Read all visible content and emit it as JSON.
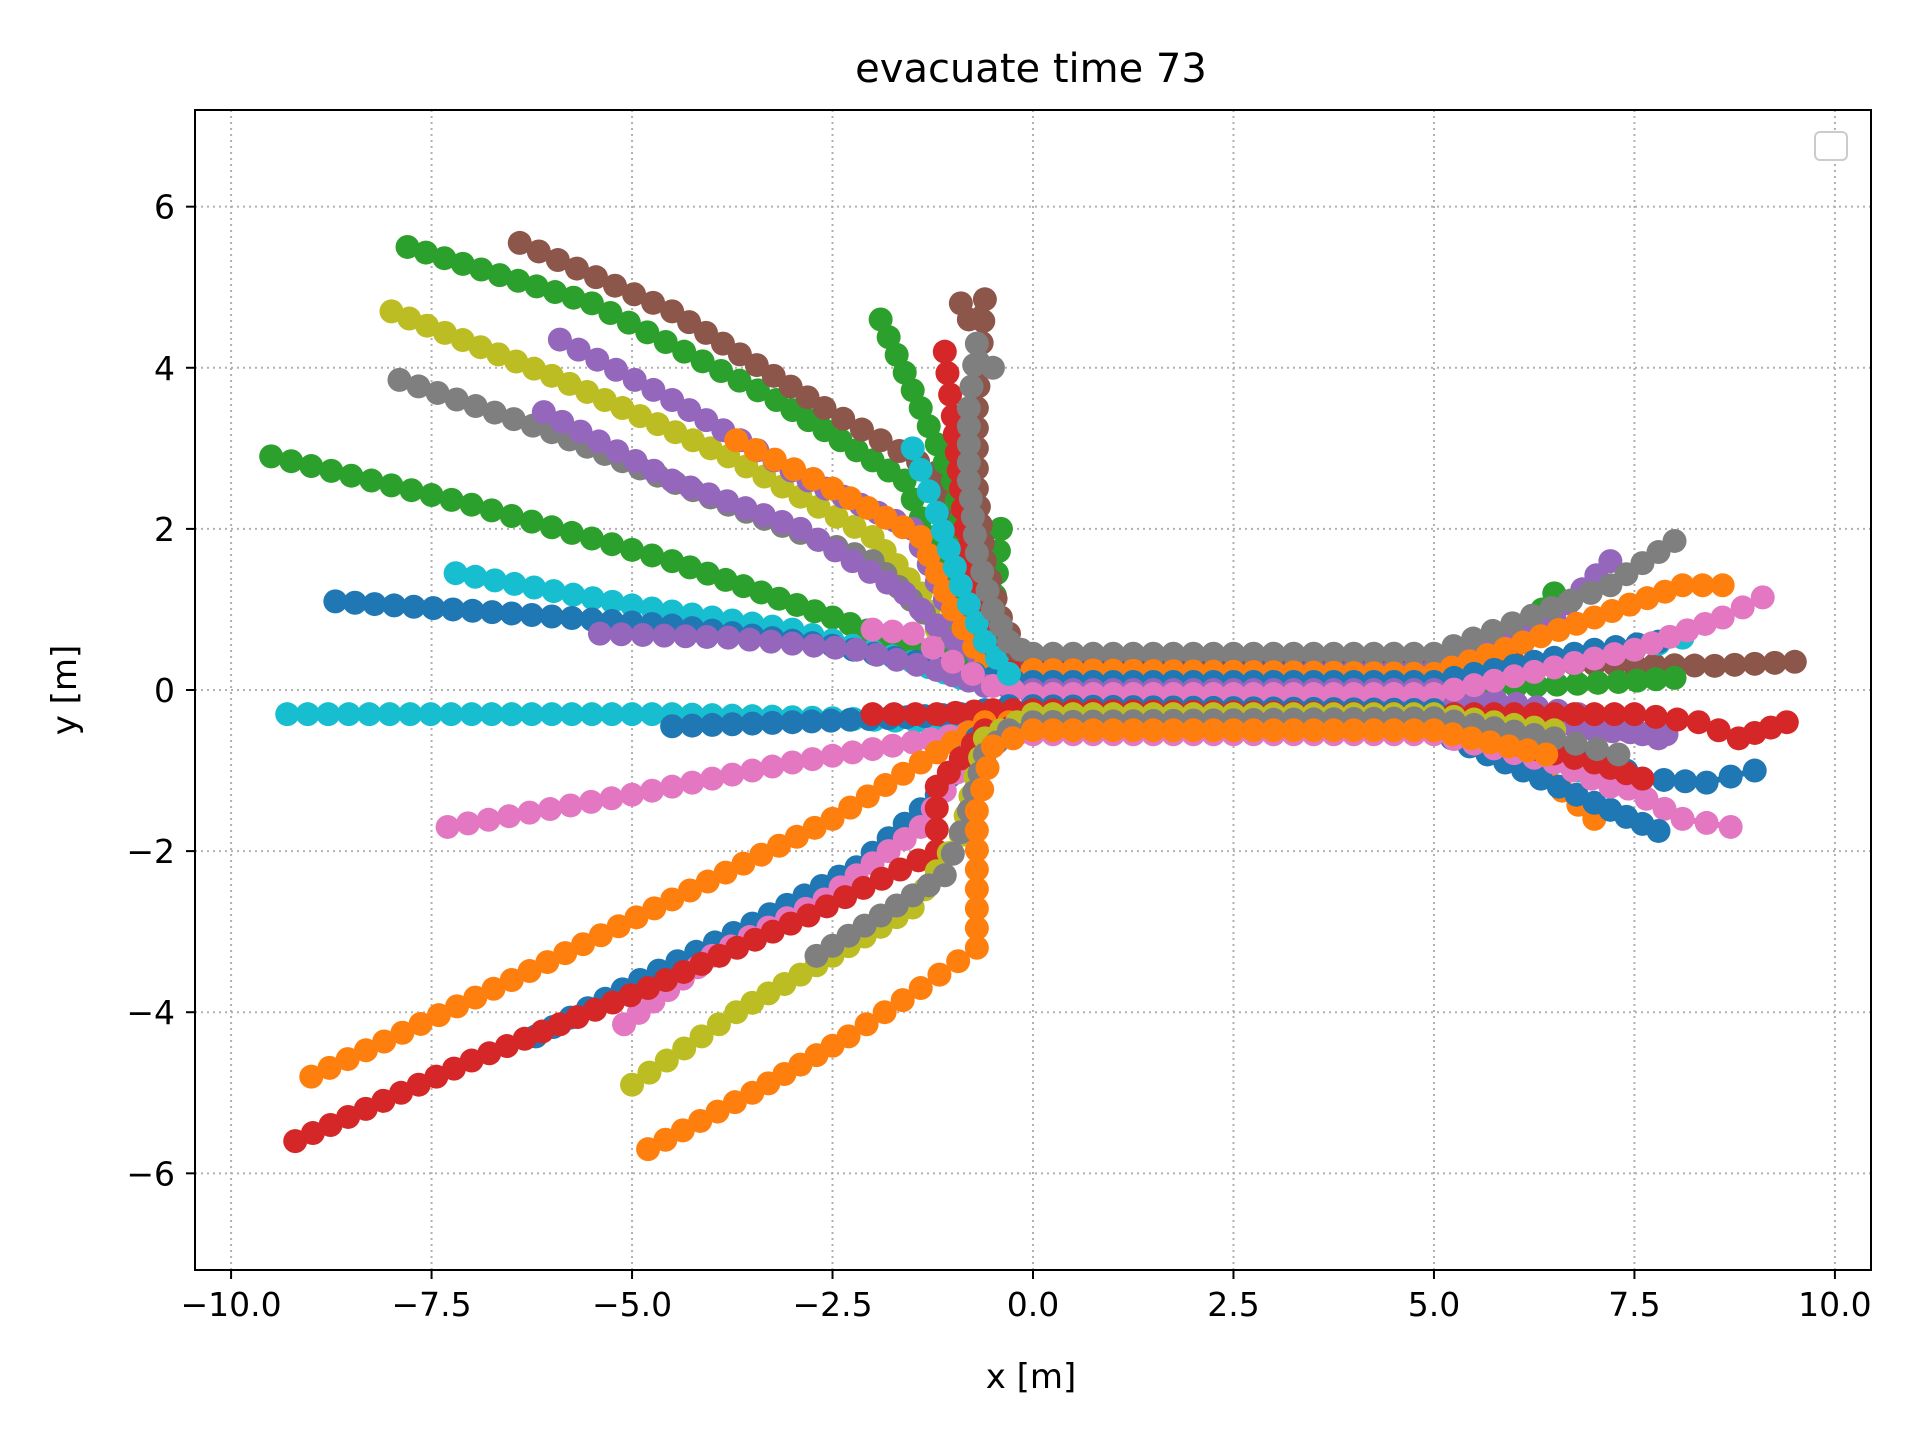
{
  "chart_data": {
    "type": "scatter",
    "title": "evacuate time 73",
    "xlabel": "x [m]",
    "ylabel": "y [m]",
    "xlim": [
      -10.45,
      10.45
    ],
    "ylim": [
      -7.2,
      7.2
    ],
    "xticks": [
      -10.0,
      -7.5,
      -5.0,
      -2.5,
      0.0,
      2.5,
      5.0,
      7.5,
      10.0
    ],
    "xtick_labels": [
      "−10.0",
      "−7.5",
      "−5.0",
      "−2.5",
      "0.0",
      "2.5",
      "5.0",
      "7.5",
      "10.0"
    ],
    "yticks": [
      -6,
      -4,
      -2,
      0,
      2,
      4,
      6
    ],
    "ytick_labels": [
      "−6",
      "−4",
      "−2",
      "0",
      "2",
      "4",
      "6"
    ],
    "grid": true,
    "legend": "top-right (empty)",
    "marker": "circle",
    "series": [
      {
        "color": "#2ca02c",
        "points": [
          [
            -7.8,
            5.5
          ],
          [
            -5.5,
            4.8
          ],
          [
            -3.2,
            3.6
          ],
          [
            -1.6,
            2.6
          ],
          [
            -1.0,
            1.2
          ],
          [
            -0.6,
            0.3
          ],
          [
            0.0,
            0.15
          ],
          [
            5.0,
            0.15
          ],
          [
            6.2,
            0.8
          ],
          [
            6.5,
            1.2
          ]
        ]
      },
      {
        "color": "#8c564b",
        "points": [
          [
            -6.4,
            5.55
          ],
          [
            -4.5,
            4.7
          ],
          [
            -2.6,
            3.5
          ],
          [
            -1.2,
            2.7
          ],
          [
            -0.7,
            1.3
          ],
          [
            -0.5,
            0.35
          ],
          [
            0.0,
            0.35
          ],
          [
            5.0,
            0.35
          ],
          [
            8.5,
            0.3
          ],
          [
            9.5,
            0.35
          ]
        ]
      },
      {
        "color": "#bcbd22",
        "points": [
          [
            -8.0,
            4.7
          ],
          [
            -6.0,
            3.9
          ],
          [
            -3.8,
            2.9
          ],
          [
            -2.0,
            1.9
          ],
          [
            -1.4,
            1.2
          ],
          [
            -1.0,
            0.3
          ],
          [
            -0.2,
            0.05
          ],
          [
            5.0,
            -0.1
          ],
          [
            6.5,
            -0.7
          ],
          [
            7.2,
            -0.9
          ]
        ]
      },
      {
        "color": "#9467bd",
        "points": [
          [
            -5.9,
            4.35
          ],
          [
            -4.5,
            3.6
          ],
          [
            -2.8,
            2.6
          ],
          [
            -1.5,
            2.0
          ],
          [
            -1.0,
            0.9
          ],
          [
            -0.7,
            0.2
          ],
          [
            0.0,
            0.2
          ],
          [
            5.0,
            0.25
          ],
          [
            6.5,
            0.9
          ],
          [
            7.2,
            1.6
          ]
        ]
      },
      {
        "color": "#7f7f7f",
        "points": [
          [
            -7.9,
            3.85
          ],
          [
            -6.0,
            3.2
          ],
          [
            -3.8,
            2.3
          ],
          [
            -2.0,
            1.6
          ],
          [
            -1.2,
            0.8
          ],
          [
            -0.6,
            0.4
          ],
          [
            0.0,
            0.45
          ],
          [
            5.0,
            0.45
          ],
          [
            7.2,
            1.3
          ],
          [
            8.0,
            1.85
          ]
        ]
      },
      {
        "color": "#9467bd",
        "points": [
          [
            -6.1,
            3.45
          ],
          [
            -4.5,
            2.6
          ],
          [
            -2.9,
            2.0
          ],
          [
            -1.6,
            1.2
          ],
          [
            -1.0,
            0.6
          ],
          [
            -0.5,
            0.3
          ],
          [
            0.0,
            -0.1
          ],
          [
            5.0,
            -0.1
          ],
          [
            7.0,
            -0.5
          ],
          [
            7.9,
            -0.55
          ]
        ]
      },
      {
        "color": "#ff7f0e",
        "points": [
          [
            -3.7,
            3.1
          ],
          [
            -2.5,
            2.5
          ],
          [
            -1.4,
            1.9
          ],
          [
            -1.0,
            1.0
          ],
          [
            -0.6,
            0.3
          ],
          [
            0.0,
            0.25
          ],
          [
            5.0,
            0.2
          ],
          [
            7.0,
            0.9
          ],
          [
            8.1,
            1.3
          ],
          [
            8.6,
            1.3
          ]
        ]
      },
      {
        "color": "#2ca02c",
        "points": [
          [
            -9.5,
            2.9
          ],
          [
            -7.0,
            2.3
          ],
          [
            -4.5,
            1.6
          ],
          [
            -2.5,
            0.9
          ],
          [
            -1.4,
            0.5
          ],
          [
            -0.5,
            0.1
          ],
          [
            0.0,
            0.0
          ],
          [
            5.0,
            0.0
          ],
          [
            7.3,
            0.1
          ],
          [
            8.0,
            0.15
          ]
        ]
      },
      {
        "color": "#17becf",
        "points": [
          [
            -7.2,
            1.45
          ],
          [
            -5.0,
            1.05
          ],
          [
            -3.0,
            0.75
          ],
          [
            -1.5,
            0.35
          ],
          [
            -0.9,
            0.15
          ],
          [
            -0.3,
            0.1
          ],
          [
            0.0,
            0.05
          ],
          [
            5.0,
            0.05
          ],
          [
            7.5,
            0.5
          ],
          [
            8.1,
            0.65
          ]
        ]
      },
      {
        "color": "#1f77b4",
        "points": [
          [
            -8.7,
            1.1
          ],
          [
            -6.5,
            0.95
          ],
          [
            -4.5,
            0.8
          ],
          [
            -2.5,
            0.55
          ],
          [
            -1.2,
            0.3
          ],
          [
            -0.5,
            0.15
          ],
          [
            0.0,
            0.1
          ],
          [
            5.0,
            0.1
          ],
          [
            7.0,
            0.5
          ],
          [
            7.8,
            0.6
          ]
        ]
      },
      {
        "color": "#9467bd",
        "points": [
          [
            -5.4,
            0.7
          ],
          [
            -3.8,
            0.65
          ],
          [
            -2.2,
            0.5
          ],
          [
            -1.2,
            0.25
          ],
          [
            -0.6,
            0.05
          ],
          [
            0.0,
            0.0
          ],
          [
            5.0,
            0.0
          ],
          [
            6.8,
            -0.3
          ],
          [
            7.4,
            -0.5
          ],
          [
            7.8,
            -0.6
          ]
        ]
      },
      {
        "color": "#e377c2",
        "points": [
          [
            -2.0,
            0.75
          ],
          [
            -1.5,
            0.7
          ],
          [
            -1.0,
            0.35
          ],
          [
            -0.5,
            0.05
          ],
          [
            0.0,
            -0.05
          ],
          [
            5.0,
            -0.05
          ],
          [
            7.5,
            0.5
          ],
          [
            8.6,
            0.9
          ],
          [
            9.1,
            1.15
          ]
        ]
      },
      {
        "color": "#17becf",
        "points": [
          [
            -9.3,
            -0.3
          ],
          [
            -7.0,
            -0.3
          ],
          [
            -4.5,
            -0.3
          ],
          [
            -2.5,
            -0.35
          ],
          [
            -1.2,
            -0.4
          ],
          [
            -0.5,
            -0.3
          ],
          [
            0.0,
            -0.3
          ],
          [
            5.0,
            -0.3
          ],
          [
            6.5,
            -0.8
          ],
          [
            6.8,
            -1.0
          ]
        ]
      },
      {
        "color": "#1f77b4",
        "points": [
          [
            -4.5,
            -0.45
          ],
          [
            -3.0,
            -0.4
          ],
          [
            -1.8,
            -0.35
          ],
          [
            -0.9,
            -0.3
          ],
          [
            -0.3,
            -0.2
          ],
          [
            0.0,
            -0.2
          ],
          [
            5.0,
            -0.25
          ],
          [
            7.0,
            -0.8
          ],
          [
            7.6,
            -1.1
          ],
          [
            8.4,
            -1.15
          ],
          [
            9.0,
            -1.0
          ]
        ]
      },
      {
        "color": "#d62728",
        "points": [
          [
            -2.0,
            -0.3
          ],
          [
            -1.2,
            -0.3
          ],
          [
            -0.5,
            -0.25
          ],
          [
            0.0,
            -0.25
          ],
          [
            5.0,
            -0.3
          ],
          [
            7.5,
            -0.3
          ],
          [
            8.3,
            -0.4
          ],
          [
            8.8,
            -0.6
          ],
          [
            9.4,
            -0.4
          ]
        ]
      },
      {
        "color": "#e377c2",
        "points": [
          [
            -7.3,
            -1.7
          ],
          [
            -5.0,
            -1.3
          ],
          [
            -3.0,
            -0.9
          ],
          [
            -1.5,
            -0.65
          ],
          [
            -0.6,
            -0.5
          ],
          [
            0.0,
            -0.45
          ],
          [
            5.0,
            -0.45
          ],
          [
            7.2,
            -1.1
          ],
          [
            8.1,
            -1.6
          ],
          [
            8.7,
            -1.7
          ]
        ]
      },
      {
        "color": "#ff7f0e",
        "points": [
          [
            -9.0,
            -4.8
          ],
          [
            -6.5,
            -3.6
          ],
          [
            -4.5,
            -2.6
          ],
          [
            -2.5,
            -1.6
          ],
          [
            -1.4,
            -0.9
          ],
          [
            -0.6,
            -0.4
          ],
          [
            0.0,
            -0.4
          ],
          [
            5.0,
            -0.4
          ],
          [
            6.2,
            -0.9
          ],
          [
            7.0,
            -1.6
          ]
        ]
      },
      {
        "color": "#1f77b4",
        "points": [
          [
            -6.2,
            -4.3
          ],
          [
            -4.9,
            -3.6
          ],
          [
            -3.5,
            -2.9
          ],
          [
            -2.2,
            -2.2
          ],
          [
            -1.2,
            -1.3
          ],
          [
            -0.7,
            -0.6
          ],
          [
            0.0,
            -0.5
          ],
          [
            5.0,
            -0.5
          ],
          [
            7.0,
            -1.4
          ],
          [
            7.8,
            -1.75
          ]
        ]
      },
      {
        "color": "#e377c2",
        "points": [
          [
            -5.1,
            -4.15
          ],
          [
            -4.0,
            -3.3
          ],
          [
            -2.6,
            -2.6
          ],
          [
            -1.4,
            -1.7
          ],
          [
            -0.8,
            -0.8
          ],
          [
            -0.4,
            -0.55
          ],
          [
            0.0,
            -0.55
          ],
          [
            5.0,
            -0.55
          ],
          [
            6.5,
            -0.9
          ],
          [
            7.2,
            -1.2
          ]
        ]
      },
      {
        "color": "#d62728",
        "points": [
          [
            -9.2,
            -5.6
          ],
          [
            -7.0,
            -4.6
          ],
          [
            -4.8,
            -3.7
          ],
          [
            -2.8,
            -2.8
          ],
          [
            -1.2,
            -2.0
          ],
          [
            -1.2,
            -1.2
          ],
          [
            -0.6,
            -0.5
          ],
          [
            0.0,
            -0.45
          ],
          [
            5.0,
            -0.45
          ],
          [
            7.0,
            -0.9
          ],
          [
            7.6,
            -1.1
          ]
        ]
      },
      {
        "color": "#bcbd22",
        "points": [
          [
            -5.0,
            -4.9
          ],
          [
            -3.7,
            -4.0
          ],
          [
            -2.5,
            -3.3
          ],
          [
            -1.5,
            -2.7
          ],
          [
            -0.9,
            -1.8
          ],
          [
            -0.6,
            -0.6
          ],
          [
            0.0,
            -0.3
          ],
          [
            5.0,
            -0.3
          ],
          [
            6.5,
            -0.5
          ]
        ]
      },
      {
        "color": "#7f7f7f",
        "points": [
          [
            -2.7,
            -3.3
          ],
          [
            -1.9,
            -2.8
          ],
          [
            -1.1,
            -2.3
          ],
          [
            -0.8,
            -1.5
          ],
          [
            -0.6,
            -0.8
          ],
          [
            -0.3,
            -0.5
          ],
          [
            0.0,
            -0.4
          ],
          [
            5.0,
            -0.35
          ],
          [
            6.5,
            -0.6
          ],
          [
            7.3,
            -0.8
          ]
        ]
      },
      {
        "color": "#ff7f0e",
        "points": [
          [
            -4.8,
            -5.7
          ],
          [
            -3.5,
            -5.0
          ],
          [
            -2.3,
            -4.3
          ],
          [
            -1.4,
            -3.7
          ],
          [
            -0.7,
            -3.2
          ],
          [
            -0.7,
            -1.5
          ],
          [
            -0.5,
            -0.7
          ],
          [
            0.0,
            -0.5
          ],
          [
            5.0,
            -0.5
          ],
          [
            6.4,
            -0.8
          ]
        ]
      },
      {
        "color": "#2ca02c",
        "points": [
          [
            -1.9,
            4.6
          ],
          [
            -1.4,
            3.5
          ],
          [
            -1.0,
            2.6
          ],
          [
            -0.8,
            1.6
          ],
          [
            -0.5,
            0.9
          ],
          [
            -0.4,
            2.0
          ]
        ]
      },
      {
        "color": "#d62728",
        "points": [
          [
            -1.1,
            4.2
          ],
          [
            -1.0,
            3.4
          ],
          [
            -0.9,
            2.5
          ],
          [
            -0.8,
            1.5
          ],
          [
            -0.6,
            0.6
          ],
          [
            -0.3,
            0.3
          ]
        ]
      },
      {
        "color": "#17becf",
        "points": [
          [
            -1.5,
            3.0
          ],
          [
            -1.2,
            2.2
          ],
          [
            -0.9,
            1.3
          ],
          [
            -0.6,
            0.6
          ],
          [
            -0.3,
            0.2
          ]
        ]
      },
      {
        "color": "#8c564b",
        "points": [
          [
            -0.9,
            4.8
          ],
          [
            -0.8,
            4.6
          ],
          [
            -0.6,
            4.85
          ],
          [
            -0.7,
            3.5
          ],
          [
            -0.7,
            2.5
          ],
          [
            -0.6,
            1.6
          ],
          [
            -0.4,
            0.9
          ],
          [
            -0.2,
            0.5
          ]
        ]
      },
      {
        "color": "#7f7f7f",
        "points": [
          [
            -0.5,
            4.0
          ],
          [
            -0.7,
            4.3
          ],
          [
            -0.8,
            3.5
          ],
          [
            -0.8,
            2.6
          ],
          [
            -0.7,
            1.7
          ],
          [
            -0.5,
            1.0
          ],
          [
            -0.3,
            0.6
          ],
          [
            -0.15,
            0.5
          ]
        ]
      }
    ]
  }
}
